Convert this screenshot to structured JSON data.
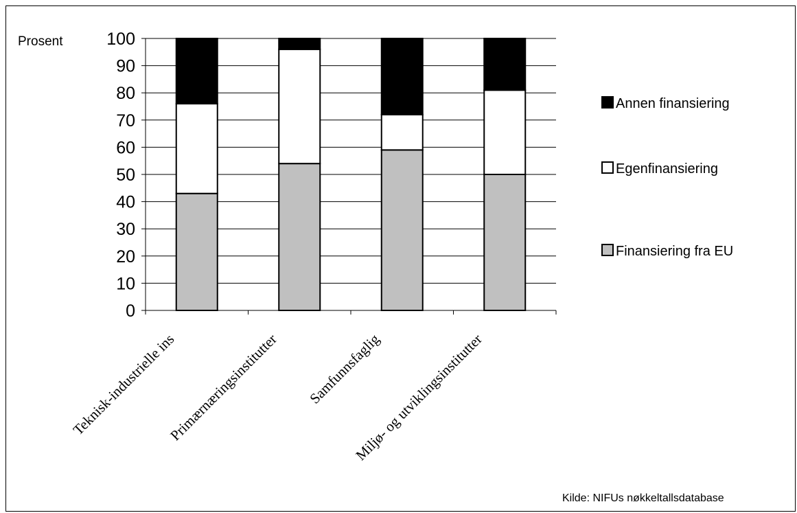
{
  "chart_data": {
    "type": "bar",
    "stacked": true,
    "ylabel": "Prosent",
    "ylim": [
      0,
      100
    ],
    "yticks": [
      0,
      10,
      20,
      30,
      40,
      50,
      60,
      70,
      80,
      90,
      100
    ],
    "grid": true,
    "legend_position": "right",
    "categories": [
      "Teknisk-industrielle ins",
      "Primærnæringsinstitutter",
      "Samfunnsfaglig",
      "Miljø- og utviklingsinstitutter"
    ],
    "series": [
      {
        "name": "Finansiering fra EU",
        "color": "#c0c0c0",
        "values": [
          43,
          54,
          59,
          50
        ]
      },
      {
        "name": "Egenfinansiering",
        "color": "#ffffff",
        "values": [
          33,
          42,
          13,
          31
        ]
      },
      {
        "name": "Annen finansiering",
        "color": "#000000",
        "values": [
          24,
          4,
          28,
          19
        ]
      }
    ],
    "source": "Kilde: NIFUs nøkkeltallsdatabase"
  }
}
